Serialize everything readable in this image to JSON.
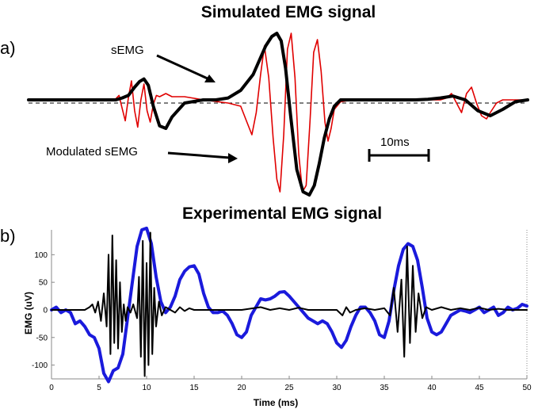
{
  "chart_data": [
    {
      "type": "line",
      "panel_label": "a)",
      "title": "Simulated EMG signal",
      "xlabel": "",
      "ylabel": "",
      "axes_visible": false,
      "baseline": "dashed",
      "annotations": [
        "sEMG",
        "Modulated sEMG"
      ],
      "scale_bar_label": "10ms",
      "series": [
        {
          "name": "sEMG",
          "color": "#000000",
          "line_width": "thick",
          "x": [
            0,
            12,
            14,
            15,
            16,
            17,
            17.8,
            18.5,
            19.2,
            20,
            21,
            22,
            23,
            25,
            28,
            30,
            32,
            34,
            36,
            38,
            39,
            39.8,
            40.5,
            41.2,
            42,
            43,
            44,
            45,
            45.8,
            46.6,
            47.4,
            48.2,
            49,
            50,
            52,
            54,
            56,
            58,
            60,
            62,
            64,
            66,
            68,
            70,
            72,
            74,
            76,
            78,
            80
          ],
          "y": [
            0.05,
            0.05,
            0.05,
            0.08,
            0.12,
            0.25,
            0.34,
            0.38,
            0.28,
            -0.05,
            -0.36,
            -0.4,
            -0.22,
            0,
            0.05,
            0.05,
            0.08,
            0.2,
            0.45,
            0.9,
            1.05,
            1.1,
            0.98,
            0.55,
            -0.2,
            -1.05,
            -1.4,
            -1.45,
            -1.3,
            -0.95,
            -0.55,
            -0.25,
            -0.05,
            0.05,
            0.05,
            0.05,
            0.05,
            0.05,
            0.05,
            0.05,
            0.06,
            0.08,
            0.11,
            0.05,
            -0.12,
            -0.2,
            -0.1,
            0.02,
            0.05
          ]
        },
        {
          "name": "Modulated sEMG",
          "color": "#e00000",
          "line_width": "thin",
          "x": [
            0,
            12,
            13,
            13.8,
            14.5,
            15,
            15.5,
            16,
            16.5,
            17,
            17.5,
            18,
            18.5,
            19,
            19.5,
            20,
            20.5,
            21,
            22,
            23,
            25,
            28,
            32,
            34,
            35,
            35.8,
            36.5,
            37.2,
            37.8,
            38.5,
            39.2,
            39.8,
            40.3,
            40.9,
            41.5,
            42.1,
            42.7,
            43.3,
            43.9,
            44.5,
            45.1,
            45.7,
            46.3,
            46.9,
            47.5,
            48,
            48.5,
            49,
            50,
            52,
            56,
            60,
            64,
            66,
            67,
            67.8,
            68.6,
            69.4,
            70.2,
            71,
            71.8,
            72.6,
            73.4,
            74,
            75,
            76,
            78,
            80
          ],
          "y": [
            0.05,
            0.05,
            0.05,
            0.05,
            0.12,
            -0.08,
            -0.28,
            0.08,
            0.35,
            -0.12,
            -0.38,
            0.05,
            0.3,
            -0.12,
            -0.3,
            -0.02,
            0.12,
            0.1,
            0.15,
            0.1,
            0.1,
            0.05,
            0.0,
            -0.05,
            -0.3,
            -0.5,
            -0.15,
            0.45,
            0.9,
            0.4,
            -0.55,
            -1.2,
            -1.4,
            -0.5,
            0.85,
            1.1,
            0.4,
            -0.8,
            -1.4,
            -1.3,
            -0.3,
            0.8,
            1.0,
            0.5,
            -0.3,
            -0.6,
            -0.4,
            -0.1,
            0.02,
            0.05,
            0.05,
            0.05,
            0.05,
            0.05,
            0.08,
            0.15,
            0.0,
            -0.15,
            0.15,
            0.25,
            0.0,
            -0.2,
            -0.25,
            -0.15,
            0.0,
            0.05,
            0.05,
            0.05
          ]
        }
      ]
    },
    {
      "type": "line",
      "panel_label": "b)",
      "title": "Experimental EMG signal",
      "xlabel": "Time (ms)",
      "ylabel": "EMG (uV)",
      "xlim": [
        0,
        50
      ],
      "ylim": [
        -125,
        145
      ],
      "xticks": [
        0,
        5,
        10,
        15,
        20,
        25,
        30,
        35,
        40,
        45,
        50
      ],
      "yticks": [
        100,
        50,
        0,
        -50,
        -100
      ],
      "grid": false,
      "series": [
        {
          "color": "#1a1adc",
          "line_width": "thick",
          "x": [
            0,
            0.5,
            1,
            1.5,
            2,
            2.5,
            3,
            3.5,
            4,
            4.5,
            5,
            5.5,
            6,
            6.5,
            7,
            7.5,
            8,
            8.5,
            9,
            9.5,
            10,
            10.5,
            11,
            11.5,
            12,
            12.5,
            13,
            13.5,
            14,
            14.5,
            15,
            15.5,
            16,
            16.5,
            17,
            17.5,
            18,
            18.5,
            19,
            19.5,
            20,
            20.5,
            21,
            21.5,
            22,
            22.5,
            23,
            23.5,
            24,
            24.5,
            25,
            25.5,
            26,
            26.5,
            27,
            27.5,
            28,
            28.5,
            29,
            29.5,
            30,
            30.5,
            31,
            31.5,
            32,
            32.5,
            33,
            33.5,
            34,
            34.5,
            35,
            35.5,
            36,
            36.5,
            37,
            37.5,
            38,
            38.5,
            39,
            39.5,
            40,
            40.5,
            41,
            41.5,
            42,
            42.5,
            43,
            43.5,
            44,
            44.5,
            45,
            45.5,
            46,
            46.5,
            47,
            47.5,
            48,
            48.5,
            49,
            49.5,
            50
          ],
          "y": [
            0,
            5,
            -5,
            0,
            -5,
            -25,
            -20,
            -30,
            -45,
            -50,
            -70,
            -115,
            -130,
            -110,
            -105,
            -80,
            -15,
            50,
            115,
            145,
            148,
            120,
            60,
            15,
            -5,
            5,
            25,
            55,
            70,
            78,
            80,
            65,
            30,
            5,
            -5,
            -5,
            -2,
            -10,
            -25,
            -45,
            -50,
            -40,
            -10,
            5,
            20,
            18,
            20,
            25,
            32,
            33,
            25,
            15,
            5,
            -5,
            -15,
            -20,
            -25,
            -20,
            -25,
            -40,
            -60,
            -68,
            -55,
            -30,
            -10,
            5,
            5,
            -5,
            -20,
            -45,
            -50,
            -20,
            35,
            80,
            110,
            120,
            115,
            90,
            40,
            -15,
            -40,
            -45,
            -40,
            -25,
            -10,
            -5,
            0,
            -2,
            -5,
            0,
            5,
            -5,
            0,
            5,
            -10,
            -5,
            5,
            0,
            3,
            10,
            7
          ]
        },
        {
          "color": "#000000",
          "line_width": "medium",
          "x": [
            0,
            3.5,
            4,
            4.3,
            4.6,
            4.9,
            5.2,
            5.5,
            5.8,
            6,
            6.2,
            6.4,
            6.6,
            6.8,
            7,
            7.2,
            7.4,
            7.6,
            7.8,
            8,
            8.3,
            8.6,
            9,
            9.2,
            9.4,
            9.6,
            9.8,
            10,
            10.2,
            10.4,
            10.6,
            10.8,
            11,
            11.3,
            11.6,
            12,
            13,
            13.5,
            14,
            14.5,
            15,
            16,
            20,
            22,
            23,
            24,
            25,
            26,
            27,
            28,
            30,
            30.6,
            31,
            31.4,
            32,
            33,
            34,
            35,
            35.6,
            36,
            36.4,
            36.8,
            37.1,
            37.4,
            37.7,
            38,
            38.3,
            38.6,
            39,
            39.4,
            40,
            41,
            42,
            43,
            44,
            45,
            46,
            47,
            48,
            49,
            50
          ],
          "y": [
            0,
            0,
            5,
            10,
            -5,
            15,
            -20,
            30,
            -30,
            100,
            -80,
            135,
            -60,
            90,
            -70,
            50,
            -40,
            10,
            -20,
            5,
            -5,
            10,
            -15,
            60,
            -85,
            125,
            -120,
            85,
            -100,
            140,
            -80,
            40,
            -30,
            15,
            -10,
            5,
            -5,
            5,
            -2,
            3,
            0,
            0,
            0,
            5,
            0,
            3,
            0,
            4,
            0,
            0,
            0,
            -10,
            5,
            -5,
            0,
            3,
            0,
            3,
            -10,
            40,
            -40,
            55,
            -85,
            115,
            -60,
            80,
            -40,
            30,
            -15,
            5,
            0,
            5,
            0,
            3,
            0,
            4,
            0,
            2,
            0,
            0,
            0
          ]
        }
      ]
    }
  ]
}
